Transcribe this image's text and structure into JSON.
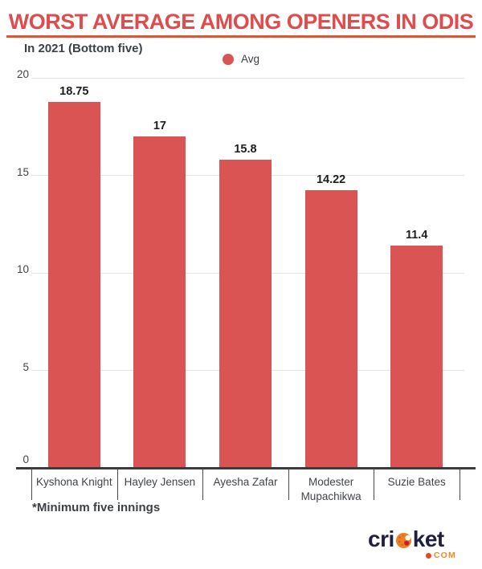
{
  "header": {
    "title": "WORST AVERAGE AMONG OPENERS IN ODIS",
    "subtitle": "In 2021 (Bottom five)"
  },
  "legend": {
    "label": "Avg"
  },
  "footnote": "*Minimum five innings",
  "branding": {
    "wordmark_left": "cri",
    "wordmark_right": "ket",
    "tld_label": "COM"
  },
  "colors": {
    "bar": "#d95452",
    "title_red": "#e04b4b",
    "underline": "#e2532e",
    "ink": "#1d1e20",
    "muted_ink": "#3d4145",
    "axis_text": "#404449",
    "grid": "#e4e4e4",
    "axis_line": "#3b3b3b",
    "tick": "#4a4a4a",
    "logo_navy": "#201f40",
    "logo_orange": "#ef8a1f",
    "logo_orange_red": "#e54a1d"
  },
  "chart_data": {
    "type": "bar",
    "title": "WORST AVERAGE AMONG OPENERS IN ODIS",
    "subtitle": "In 2021 (Bottom five)",
    "categories": [
      "Kyshona Knight",
      "Hayley Jensen",
      "Ayesha Zafar",
      "Modester Mupachikwa",
      "Suzie Bates"
    ],
    "series": [
      {
        "name": "Avg",
        "values": [
          18.75,
          17,
          15.8,
          14.22,
          11.4
        ]
      }
    ],
    "value_labels": [
      "18.75",
      "17",
      "15.8",
      "14.22",
      "11.4"
    ],
    "xlabel": "",
    "ylabel": "",
    "ylim": [
      0,
      20
    ],
    "yticks": [
      0,
      5,
      10,
      15,
      20
    ],
    "grid": true,
    "legend_position": "top-center",
    "bar_color": "#d95452",
    "footnote": "*Minimum five innings"
  }
}
